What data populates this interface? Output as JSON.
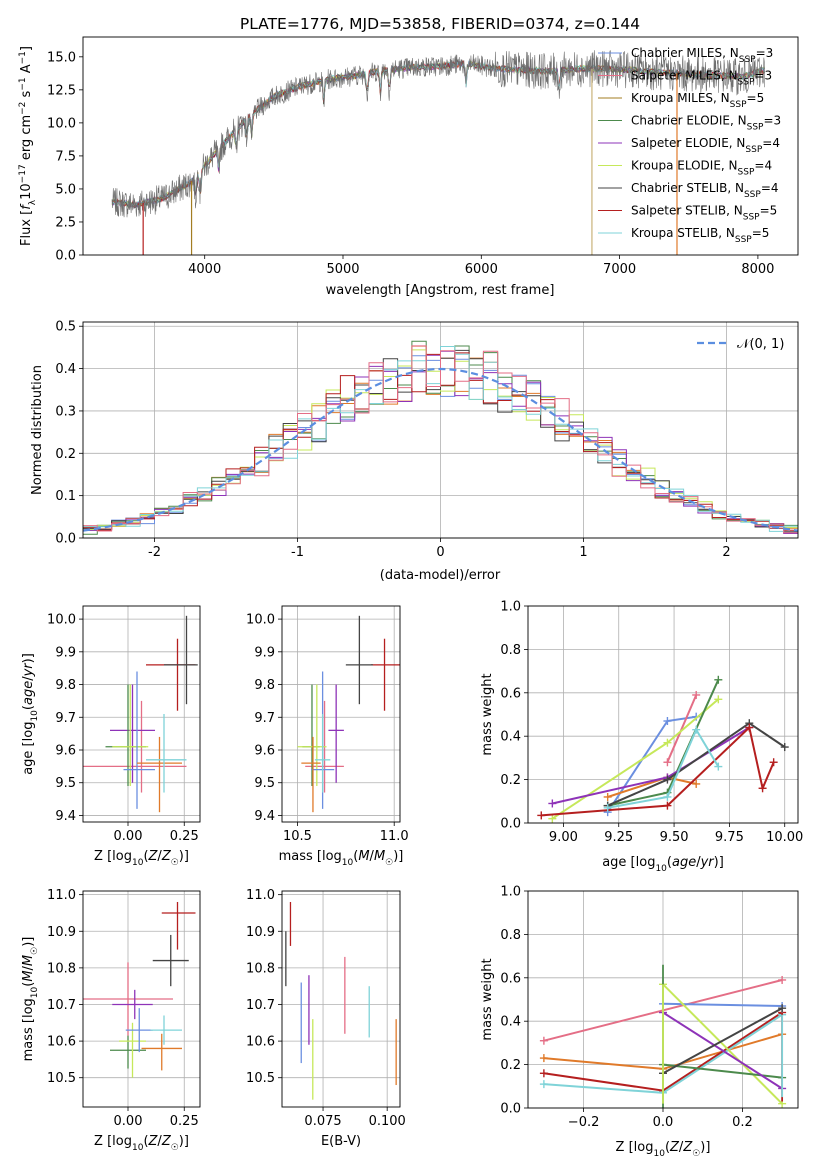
{
  "chart_data": [
    {
      "id": "spectrum",
      "type": "line",
      "title": "PLATE=1776, MJD=53858, FIBERID=0374, z=0.144",
      "xlabel": "wavelength [Angstrom, rest frame]",
      "ylabel": "Flux [f_λ10^-17 erg cm^-2 s^-1 A^-1]",
      "xlim": [
        3120,
        8290
      ],
      "ylim": [
        0,
        16.5
      ],
      "xticks": [
        4000,
        5000,
        6000,
        7000,
        8000
      ],
      "yticks": [
        0.0,
        2.5,
        5.0,
        7.5,
        10.0,
        12.5,
        15.0
      ],
      "grid": false,
      "legend_position": "right",
      "series": [
        {
          "name": "Chabrier MILES, N_SSP=3",
          "color": "#6b8fe0"
        },
        {
          "name": "Salpeter MILES, N_SSP=3",
          "color": "#e46e86"
        },
        {
          "name": "Kroupa MILES, N_SSP=5",
          "color": "#a37d22"
        },
        {
          "name": "Chabrier ELODIE, N_SSP=3",
          "color": "#4c8a4c"
        },
        {
          "name": "Salpeter ELODIE, N_SSP=4",
          "color": "#8e33b8"
        },
        {
          "name": "Kroupa ELODIE, N_SSP=4",
          "color": "#c6e85a"
        },
        {
          "name": "Chabrier STELIB, N_SSP=4",
          "color": "#444444"
        },
        {
          "name": "Salpeter STELIB, N_SSP=5",
          "color": "#b51f1f"
        },
        {
          "name": "Kroupa STELIB, N_SSP=5",
          "color": "#7fd3d8"
        }
      ],
      "continuum_x": [
        3330,
        3500,
        3700,
        3900,
        4100,
        4300,
        4500,
        4700,
        4900,
        5100,
        5300,
        5500,
        5700,
        5900,
        6100,
        6300,
        6500,
        6700,
        6900,
        7100,
        7300,
        7500,
        7700,
        7900,
        8050
      ],
      "continuum_y": [
        4.0,
        3.8,
        4.3,
        5.5,
        8.0,
        10.3,
        12.0,
        12.8,
        13.3,
        13.6,
        14.0,
        14.2,
        14.3,
        14.5,
        14.1,
        14.0,
        13.9,
        14.1,
        14.1,
        14.0,
        13.8,
        13.7,
        13.6,
        13.5,
        14.0
      ],
      "observed_spikes_x": [
        3555,
        3905,
        6800,
        7415
      ]
    },
    {
      "id": "residuals",
      "type": "bar",
      "xlabel": "(data-model)/error",
      "ylabel": "Normed distribution",
      "xlim": [
        -2.5,
        2.5
      ],
      "ylim": [
        0,
        0.51
      ],
      "xticks": [
        -2,
        -1,
        0,
        1,
        2
      ],
      "yticks": [
        0.0,
        0.1,
        0.2,
        0.3,
        0.4,
        0.5
      ],
      "grid": true,
      "legend_position": "top-right",
      "reference": {
        "name": "𝒩(0, 1)",
        "mean": 0,
        "sigma": 1,
        "color": "#5b8ee0"
      },
      "bin_width": 0.1,
      "series": [
        {
          "color": "#6b8fe0",
          "values_bins_from": -2.5
        },
        {
          "color": "#e07a2a"
        },
        {
          "color": "#4c8a4c"
        },
        {
          "color": "#8e33b8"
        },
        {
          "color": "#c6e85a"
        },
        {
          "color": "#444444"
        },
        {
          "color": "#b51f1f"
        },
        {
          "color": "#7fd3d8"
        },
        {
          "color": "#e46e86"
        }
      ]
    },
    {
      "id": "age_vs_Z",
      "type": "scatter",
      "xlabel": "Z [log10(Z/Z☉)]",
      "ylabel": "age  [log10(age/yr)]",
      "xlim": [
        -0.2,
        0.32
      ],
      "ylim": [
        9.38,
        10.04
      ],
      "xticks": [
        0.0,
        0.25
      ],
      "xticklabels": [
        "0.00",
        "0.25"
      ],
      "yticks": [
        9.4,
        9.5,
        9.6,
        9.7,
        9.8,
        9.9,
        10.0
      ],
      "grid": true,
      "points": [
        {
          "color": "#b51f1f",
          "x": 0.22,
          "y": 9.86,
          "xerr": [
            0.14,
            0.08
          ],
          "yerr": [
            0.14,
            0.08
          ]
        },
        {
          "color": "#444444",
          "x": 0.26,
          "y": 9.86,
          "xerr": [
            0.1,
            0.05
          ],
          "yerr": [
            0.12,
            0.15
          ]
        },
        {
          "color": "#e46e86",
          "x": 0.06,
          "y": 9.55,
          "xerr": [
            0.26,
            0.2
          ],
          "yerr": [
            0.08,
            0.2
          ]
        },
        {
          "color": "#8e33b8",
          "x": 0.02,
          "y": 9.66,
          "xerr": [
            0.1,
            0.1
          ],
          "yerr": [
            0.16,
            0.14
          ]
        },
        {
          "color": "#4c8a4c",
          "x": 0.0,
          "y": 9.61,
          "xerr": [
            0.1,
            0.08
          ],
          "yerr": [
            0.12,
            0.19
          ]
        },
        {
          "color": "#c6e85a",
          "x": 0.01,
          "y": 9.61,
          "xerr": [
            0.08,
            0.08
          ],
          "yerr": [
            0.12,
            0.19
          ]
        },
        {
          "color": "#6b8fe0",
          "x": 0.04,
          "y": 9.54,
          "xerr": [
            0.06,
            0.08
          ],
          "yerr": [
            0.12,
            0.3
          ]
        },
        {
          "color": "#e07a2a",
          "x": 0.14,
          "y": 9.56,
          "xerr": [
            0.1,
            0.1
          ],
          "yerr": [
            0.15,
            0.08
          ]
        },
        {
          "color": "#7fd3d8",
          "x": 0.16,
          "y": 9.57,
          "xerr": [
            0.08,
            0.1
          ],
          "yerr": [
            0.1,
            0.14
          ]
        }
      ]
    },
    {
      "id": "age_vs_mass",
      "type": "scatter",
      "xlabel": "mass [log10(M/M☉)]",
      "ylabel": "",
      "xlim": [
        10.42,
        11.03
      ],
      "ylim": [
        9.38,
        10.04
      ],
      "xticks": [
        10.5,
        11.0
      ],
      "xticklabels": [
        "10.5",
        "11.0"
      ],
      "yticks": [
        9.4,
        9.5,
        9.6,
        9.7,
        9.8,
        9.9,
        10.0
      ],
      "grid": true,
      "points": [
        {
          "color": "#b51f1f",
          "x": 10.95,
          "y": 9.86,
          "xerr": [
            0.07,
            0.08
          ],
          "yerr": [
            0.14,
            0.08
          ]
        },
        {
          "color": "#444444",
          "x": 10.82,
          "y": 9.86,
          "xerr": [
            0.07,
            0.07
          ],
          "yerr": [
            0.12,
            0.15
          ]
        },
        {
          "color": "#e46e86",
          "x": 10.64,
          "y": 9.55,
          "xerr": [
            0.1,
            0.1
          ],
          "yerr": [
            0.08,
            0.2
          ]
        },
        {
          "color": "#8e33b8",
          "x": 10.7,
          "y": 9.66,
          "xerr": [
            0.04,
            0.04
          ],
          "yerr": [
            0.16,
            0.14
          ]
        },
        {
          "color": "#4c8a4c",
          "x": 10.575,
          "y": 9.61,
          "xerr": [
            0.05,
            0.04
          ],
          "yerr": [
            0.12,
            0.19
          ]
        },
        {
          "color": "#c6e85a",
          "x": 10.6,
          "y": 9.61,
          "xerr": [
            0.1,
            0.05
          ],
          "yerr": [
            0.12,
            0.19
          ]
        },
        {
          "color": "#6b8fe0",
          "x": 10.63,
          "y": 9.54,
          "xerr": [
            0.06,
            0.06
          ],
          "yerr": [
            0.12,
            0.3
          ]
        },
        {
          "color": "#e07a2a",
          "x": 10.58,
          "y": 9.56,
          "xerr": [
            0.06,
            0.04
          ],
          "yerr": [
            0.15,
            0.08
          ]
        },
        {
          "color": "#7fd3d8",
          "x": 10.63,
          "y": 9.57,
          "xerr": [
            0.04,
            0.04
          ],
          "yerr": [
            0.1,
            0.14
          ]
        }
      ]
    },
    {
      "id": "mass_weight_vs_age",
      "type": "line",
      "xlabel": "age  [log10(age/yr)]",
      "ylabel": "mass weight",
      "xlim": [
        8.84,
        10.06
      ],
      "ylim": [
        0,
        1.0
      ],
      "xticks": [
        9.0,
        9.25,
        9.5,
        9.75,
        10.0
      ],
      "xticklabels": [
        "9.00",
        "9.25",
        "9.50",
        "9.75",
        "10.00"
      ],
      "yticks": [
        0.0,
        0.2,
        0.4,
        0.6,
        0.8,
        1.0
      ],
      "grid": true,
      "series": [
        {
          "color": "#6b8fe0",
          "x": [
            9.2,
            9.47,
            9.6
          ],
          "y": [
            0.05,
            0.47,
            0.49
          ]
        },
        {
          "color": "#e07a2a",
          "x": [
            9.2,
            9.47,
            9.6
          ],
          "y": [
            0.12,
            0.21,
            0.18
          ]
        },
        {
          "color": "#e46e86",
          "x": [
            9.47,
            9.6
          ],
          "y": [
            0.28,
            0.59
          ]
        },
        {
          "color": "#c6e85a",
          "x": [
            8.95,
            9.47,
            9.7
          ],
          "y": [
            0.02,
            0.37,
            0.57
          ]
        },
        {
          "color": "#4c8a4c",
          "x": [
            9.2,
            9.47,
            9.7
          ],
          "y": [
            0.08,
            0.14,
            0.66
          ]
        },
        {
          "color": "#8e33b8",
          "x": [
            8.95,
            9.47,
            9.84
          ],
          "y": [
            0.09,
            0.21,
            0.44
          ]
        },
        {
          "color": "#444444",
          "x": [
            9.2,
            9.47,
            9.84,
            10.0
          ],
          "y": [
            0.08,
            0.2,
            0.46,
            0.35
          ]
        },
        {
          "color": "#b51f1f",
          "x": [
            8.9,
            9.47,
            9.84,
            9.9,
            9.95
          ],
          "y": [
            0.035,
            0.08,
            0.44,
            0.16,
            0.28
          ]
        },
        {
          "color": "#7fd3d8",
          "x": [
            9.2,
            9.47,
            9.6,
            9.7
          ],
          "y": [
            0.07,
            0.12,
            0.43,
            0.26
          ]
        }
      ]
    },
    {
      "id": "mass_vs_Z",
      "type": "scatter",
      "xlabel": "Z [log10(Z/Z☉)]",
      "ylabel": "mass [log10(M/M☉)]",
      "xlim": [
        -0.2,
        0.32
      ],
      "ylim": [
        10.42,
        11.01
      ],
      "xticks": [
        0.0,
        0.25
      ],
      "xticklabels": [
        "0.00",
        "0.25"
      ],
      "yticks": [
        10.5,
        10.6,
        10.7,
        10.8,
        10.9,
        11.0
      ],
      "grid": true,
      "points": [
        {
          "color": "#b51f1f",
          "x": 0.22,
          "y": 10.95,
          "xerr": [
            0.07,
            0.08
          ],
          "yerr": [
            0.1,
            0.03
          ]
        },
        {
          "color": "#444444",
          "x": 0.19,
          "y": 10.82,
          "xerr": [
            0.08,
            0.08
          ],
          "yerr": [
            0.07,
            0.07
          ]
        },
        {
          "color": "#e46e86",
          "x": 0.0,
          "y": 10.715,
          "xerr": [
            0.2,
            0.2
          ],
          "yerr": [
            0.1,
            0.1
          ]
        },
        {
          "color": "#8e33b8",
          "x": 0.03,
          "y": 10.7,
          "xerr": [
            0.1,
            0.08
          ],
          "yerr": [
            0.04,
            0.04
          ]
        },
        {
          "color": "#4c8a4c",
          "x": 0.0,
          "y": 10.575,
          "xerr": [
            0.08,
            0.08
          ],
          "yerr": [
            0.05,
            0.04
          ]
        },
        {
          "color": "#c6e85a",
          "x": 0.02,
          "y": 10.6,
          "xerr": [
            0.06,
            0.06
          ],
          "yerr": [
            0.1,
            0.05
          ]
        },
        {
          "color": "#6b8fe0",
          "x": 0.05,
          "y": 10.63,
          "xerr": [
            0.06,
            0.06
          ],
          "yerr": [
            0.06,
            0.06
          ]
        },
        {
          "color": "#e07a2a",
          "x": 0.15,
          "y": 10.58,
          "xerr": [
            0.09,
            0.09
          ],
          "yerr": [
            0.06,
            0.04
          ]
        },
        {
          "color": "#7fd3d8",
          "x": 0.16,
          "y": 10.63,
          "xerr": [
            0.06,
            0.08
          ],
          "yerr": [
            0.04,
            0.04
          ]
        }
      ]
    },
    {
      "id": "mass_vs_EBV",
      "type": "scatter",
      "xlabel": "E(B-V)",
      "ylabel": "",
      "xlim": [
        0.059,
        0.105
      ],
      "ylim": [
        10.42,
        11.01
      ],
      "xticks": [
        0.075,
        0.1
      ],
      "xticklabels": [
        "0.075",
        "0.100"
      ],
      "yticks": [
        10.5,
        10.6,
        10.7,
        10.8,
        10.9,
        11.0
      ],
      "grid": true,
      "points": [
        {
          "color": "#b51f1f",
          "x": 0.0623,
          "y": 10.92,
          "yerr": [
            0.06,
            0.06
          ]
        },
        {
          "color": "#444444",
          "x": 0.0605,
          "y": 10.82,
          "yerr": [
            0.07,
            0.08
          ]
        },
        {
          "color": "#6b8fe0",
          "x": 0.0665,
          "y": 10.65,
          "yerr": [
            0.11,
            0.11
          ]
        },
        {
          "color": "#8e33b8",
          "x": 0.0695,
          "y": 10.69,
          "yerr": [
            0.1,
            0.09
          ]
        },
        {
          "color": "#c6e85a",
          "x": 0.071,
          "y": 10.55,
          "yerr": [
            0.11,
            0.11
          ]
        },
        {
          "color": "#e46e86",
          "x": 0.0835,
          "y": 10.72,
          "yerr": [
            0.1,
            0.11
          ]
        },
        {
          "color": "#7fd3d8",
          "x": 0.093,
          "y": 10.68,
          "yerr": [
            0.07,
            0.07
          ]
        },
        {
          "color": "#e07a2a",
          "x": 0.1035,
          "y": 10.57,
          "yerr": [
            0.09,
            0.09
          ]
        }
      ]
    },
    {
      "id": "mass_weight_vs_Z",
      "type": "line",
      "xlabel": "Z [log10(Z/Z☉)]",
      "ylabel": "mass weight",
      "xlim": [
        -0.34,
        0.34
      ],
      "ylim": [
        0,
        1.0
      ],
      "xticks": [
        -0.2,
        0.0,
        0.2
      ],
      "xticklabels": [
        "−0.2",
        "0.0",
        "0.2"
      ],
      "yticks": [
        0.0,
        0.2,
        0.4,
        0.6,
        0.8,
        1.0
      ],
      "grid": true,
      "series": [
        {
          "color": "#e46e86",
          "x": [
            -0.3,
            0.3
          ],
          "y": [
            0.31,
            0.59
          ]
        },
        {
          "color": "#e07a2a",
          "x": [
            -0.3,
            0.0,
            0.3
          ],
          "y": [
            0.23,
            0.18,
            0.34
          ]
        },
        {
          "color": "#b51f1f",
          "x": [
            -0.3,
            0.0,
            0.3
          ],
          "y": [
            0.16,
            0.08,
            0.44
          ]
        },
        {
          "color": "#7fd3d8",
          "x": [
            -0.3,
            0.0,
            0.3
          ],
          "y": [
            0.11,
            0.07,
            0.43
          ]
        },
        {
          "color": "#6b8fe0",
          "x": [
            0.0,
            0.3
          ],
          "y": [
            0.48,
            0.47
          ]
        },
        {
          "color": "#c6e85a",
          "x": [
            0.0,
            0.3
          ],
          "y": [
            0.57,
            0.02
          ]
        },
        {
          "color": "#4c8a4c",
          "x": [
            0.0,
            0.3
          ],
          "y": [
            0.2,
            0.14
          ]
        },
        {
          "color": "#8e33b8",
          "x": [
            0.0,
            0.3
          ],
          "y": [
            0.44,
            0.09
          ]
        },
        {
          "color": "#444444",
          "x": [
            0.0,
            0.3
          ],
          "y": [
            0.16,
            0.46
          ]
        }
      ],
      "vertical_markers": [
        {
          "color": "#4c8a4c",
          "x": 0.0,
          "y": [
            0.0,
            0.66
          ]
        },
        {
          "color": "#c6e85a",
          "x": 0.0,
          "y": [
            0.02,
            0.57
          ]
        },
        {
          "color": "#b51f1f",
          "x": 0.3,
          "y": [
            0.03,
            0.44
          ]
        },
        {
          "color": "#7fd3d8",
          "x": 0.3,
          "y": [
            0.05,
            0.43
          ]
        }
      ]
    }
  ]
}
